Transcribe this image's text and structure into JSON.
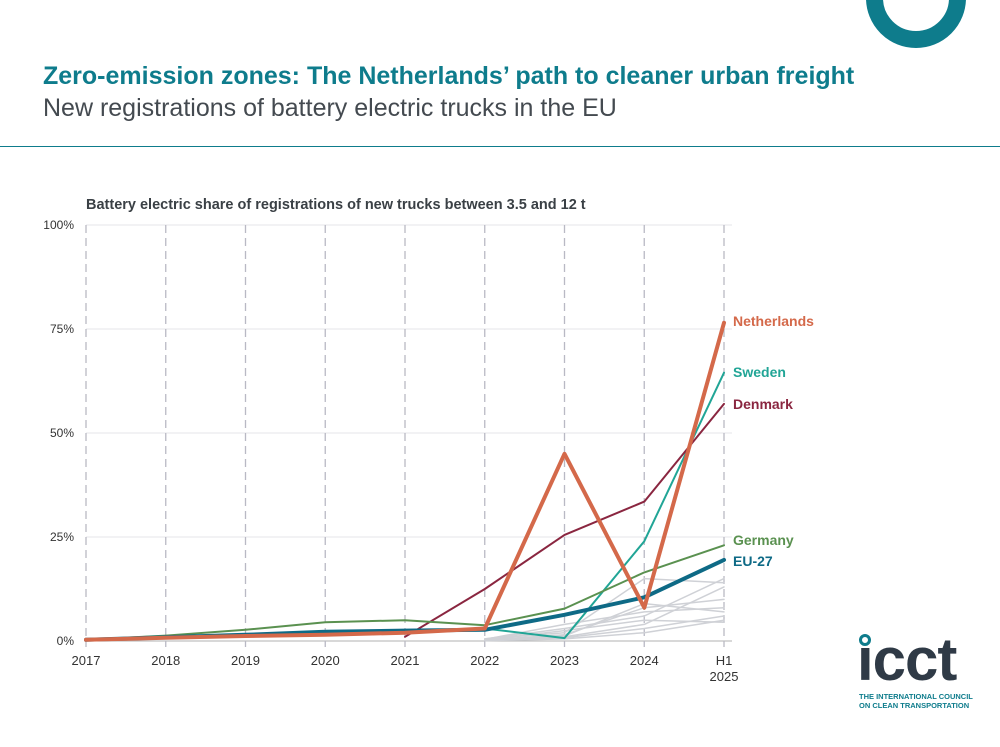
{
  "header": {
    "title": "Zero-emission zones: The Netherlands’ path to cleaner urban freight",
    "subtitle": "New registrations of battery electric trucks in the EU"
  },
  "logo": {
    "wordmark": "icct",
    "tagline_1": "THE INTERNATIONAL COUNCIL",
    "tagline_2": "ON CLEAN TRANSPORTATION"
  },
  "colors": {
    "brand": "#0e7c8c",
    "grid": "#b9b9c4",
    "other_countries": "#cfd1d6"
  },
  "chart_data": {
    "type": "line",
    "title": "Battery electric share of registrations of new trucks between 3.5 and 12 t",
    "xlabel": "",
    "ylabel": "",
    "categories": [
      "2017",
      "2018",
      "2019",
      "2020",
      "2021",
      "2022",
      "2023",
      "2024",
      "H1 2025"
    ],
    "ylim": [
      0,
      100
    ],
    "yticks": [
      0,
      25,
      50,
      75,
      100
    ],
    "ytick_labels": [
      "0%",
      "25%",
      "50%",
      "75%",
      "100%"
    ],
    "grid": true,
    "series": [
      {
        "name": "Netherlands",
        "color": "#d4694a",
        "width": 4,
        "labeled": true,
        "values": [
          0.3,
          0.8,
          1.2,
          1.5,
          2,
          3,
          45,
          8,
          76.5
        ]
      },
      {
        "name": "Sweden",
        "color": "#21a596",
        "width": 2,
        "labeled": true,
        "values": [
          null,
          null,
          null,
          null,
          null,
          3,
          0.7,
          24,
          64.5
        ]
      },
      {
        "name": "Denmark",
        "color": "#8a2640",
        "width": 2,
        "labeled": true,
        "values": [
          null,
          null,
          null,
          null,
          1,
          12.5,
          25.5,
          33.5,
          57
        ]
      },
      {
        "name": "Germany",
        "color": "#5a9150",
        "width": 2,
        "labeled": true,
        "values": [
          0.3,
          1.3,
          2.7,
          4.5,
          5,
          3.8,
          7.8,
          16.5,
          23
        ]
      },
      {
        "name": "EU-27",
        "color": "#0e6a86",
        "width": 4,
        "labeled": true,
        "values": [
          0.3,
          0.9,
          1.5,
          2.2,
          2.5,
          2.7,
          6.3,
          10.5,
          19.5
        ]
      },
      {
        "name": "Other 1",
        "color": "#cfd1d6",
        "width": 1.5,
        "labeled": false,
        "values": [
          null,
          null,
          null,
          null,
          null,
          0.5,
          3,
          6,
          15
        ]
      },
      {
        "name": "Other 2",
        "color": "#cfd1d6",
        "width": 1.5,
        "labeled": false,
        "values": [
          null,
          null,
          null,
          null,
          null,
          0.5,
          2,
          15,
          14
        ]
      },
      {
        "name": "Other 3",
        "color": "#cfd1d6",
        "width": 1.5,
        "labeled": false,
        "values": [
          null,
          null,
          null,
          null,
          null,
          0.2,
          1,
          4,
          13
        ]
      },
      {
        "name": "Other 4",
        "color": "#cfd1d6",
        "width": 1.5,
        "labeled": false,
        "values": [
          null,
          null,
          null,
          null,
          null,
          0.3,
          1.5,
          8,
          10
        ]
      },
      {
        "name": "Other 5",
        "color": "#cfd1d6",
        "width": 1.5,
        "labeled": false,
        "values": [
          null,
          null,
          null,
          null,
          null,
          0.4,
          4,
          7,
          8
        ]
      },
      {
        "name": "Other 6",
        "color": "#cfd1d6",
        "width": 1.5,
        "labeled": false,
        "values": [
          null,
          null,
          null,
          null,
          null,
          0.2,
          0.8,
          3,
          6
        ]
      },
      {
        "name": "Other 7",
        "color": "#cfd1d6",
        "width": 1.5,
        "labeled": false,
        "values": [
          null,
          null,
          null,
          null,
          null,
          0.1,
          0.5,
          2,
          5
        ]
      },
      {
        "name": "Other 8",
        "color": "#cfd1d6",
        "width": 1.5,
        "labeled": false,
        "values": [
          null,
          null,
          null,
          null,
          null,
          0.3,
          2.5,
          5,
          4.5
        ]
      },
      {
        "name": "Other 9",
        "color": "#cfd1d6",
        "width": 1.5,
        "labeled": false,
        "values": [
          null,
          null,
          null,
          null,
          null,
          0.2,
          1.2,
          9,
          7
        ]
      }
    ]
  }
}
